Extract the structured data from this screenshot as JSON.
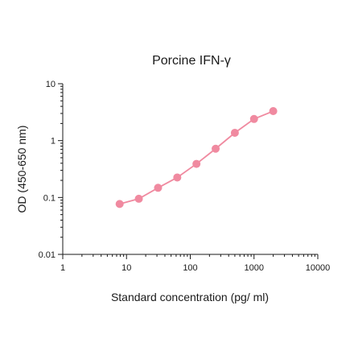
{
  "chart_data": {
    "type": "line",
    "title": "Porcine IFN-γ",
    "xlabel": "Standard concentration (pg/ ml)",
    "ylabel": "OD (450-650 nm)",
    "x_scale": "log",
    "y_scale": "log",
    "xlim": [
      1,
      10000
    ],
    "ylim": [
      0.01,
      10
    ],
    "x_ticks": [
      {
        "value": 1,
        "label": "1"
      },
      {
        "value": 10,
        "label": "10"
      },
      {
        "value": 100,
        "label": "100"
      },
      {
        "value": 1000,
        "label": "1000"
      },
      {
        "value": 10000,
        "label": "10000"
      }
    ],
    "y_ticks": [
      {
        "value": 0.01,
        "label": "0.01"
      },
      {
        "value": 0.1,
        "label": "0.1"
      },
      {
        "value": 1,
        "label": "1"
      },
      {
        "value": 10,
        "label": "10"
      }
    ],
    "grid": false,
    "legend": "none",
    "series": [
      {
        "color": "#f08aa0",
        "x": [
          7.8,
          15.6,
          31.25,
          62.5,
          125,
          250,
          500,
          1000,
          2000
        ],
        "y": [
          0.077,
          0.095,
          0.148,
          0.225,
          0.39,
          0.72,
          1.37,
          2.4,
          3.3
        ]
      }
    ]
  }
}
